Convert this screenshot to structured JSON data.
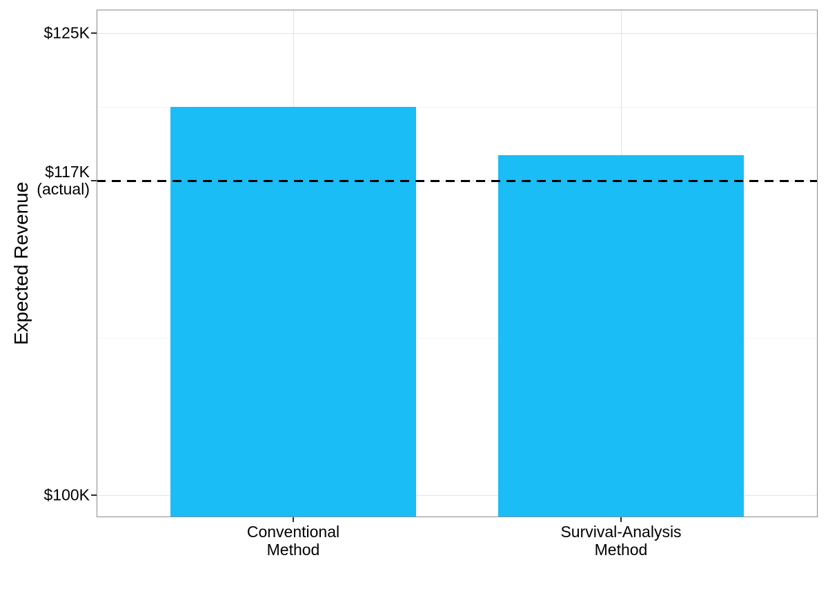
{
  "chart_data": {
    "type": "bar",
    "title": "",
    "ylabel": "Expected Revenue",
    "xlabel": "",
    "categories": [
      "Conventional Method",
      "Survival-Analysis Method"
    ],
    "category_label_lines": [
      [
        "Conventional",
        "Method"
      ],
      [
        "Survival-Analysis",
        "Method"
      ]
    ],
    "values": [
      121.0,
      118.4
    ],
    "value_unit": "USD thousands",
    "ylim": [
      98.7,
      126.3
    ],
    "yticks": [
      {
        "value": 125,
        "label_lines": [
          "$125K"
        ]
      },
      {
        "value": 117,
        "label_lines": [
          "$117K",
          "(actual)"
        ]
      },
      {
        "value": 100,
        "label_lines": [
          "$100K"
        ]
      }
    ],
    "minor_gridline_values": [
      121,
      108.5
    ],
    "reference_line": {
      "value": 117,
      "label": "$117K (actual)",
      "style": "dashed"
    },
    "grid": true,
    "legend": "none"
  },
  "colors": {
    "bar_fill": "#1ABDF5",
    "panel_border": "#8A8A8A",
    "grid_major": "#E2E2E2",
    "grid_minor": "#F3F3F3",
    "reference_line": "#000000",
    "tick_mark": "#2B2B2B",
    "text": "#000000",
    "background": "#FFFFFF"
  }
}
